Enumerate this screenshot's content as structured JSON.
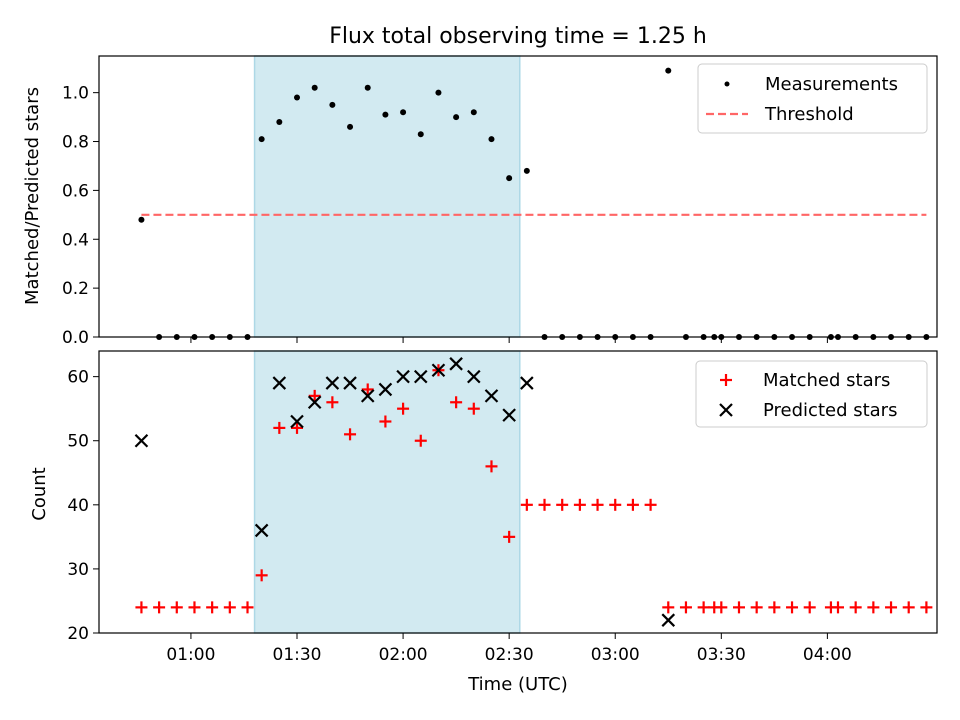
{
  "title": "Flux total observing time = 1.25 h",
  "colors": {
    "shade": "#add8e6",
    "threshold": "#ff6666",
    "matched": "#ff0000",
    "predicted": "#000000",
    "measurement": "#000000"
  },
  "chart_data": [
    {
      "type": "scatter",
      "xlabel": "",
      "ylabel": "Matched/Predicted stars",
      "ylim": [
        0,
        1.15
      ],
      "yticks": [
        0.0,
        0.2,
        0.4,
        0.6,
        0.8,
        1.0
      ],
      "ytick_labels": [
        "0.0",
        "0.2",
        "0.4",
        "0.6",
        "0.8",
        "1.0"
      ],
      "xlim_min": [
        34,
        271
      ],
      "shaded_interval_min": [
        78,
        153
      ],
      "legend_position": "top-right",
      "series": [
        {
          "name": "Measurements",
          "marker": "dot",
          "x_min": [
            46,
            51,
            56,
            61,
            66,
            71,
            76,
            80,
            85,
            90,
            95,
            100,
            105,
            110,
            115,
            120,
            125,
            130,
            135,
            140,
            145,
            150,
            155,
            160,
            165,
            170,
            175,
            180,
            185,
            190,
            195,
            200,
            205,
            208,
            210,
            215,
            220,
            225,
            230,
            235,
            241,
            243,
            248,
            253,
            258,
            263,
            268
          ],
          "y": [
            0.48,
            0.0,
            0.0,
            0.0,
            0.0,
            0.0,
            0.0,
            0.81,
            0.88,
            0.98,
            1.02,
            0.95,
            0.86,
            1.02,
            0.91,
            0.92,
            0.83,
            1.0,
            0.9,
            0.92,
            0.81,
            0.65,
            0.68,
            0.0,
            0.0,
            0.0,
            0.0,
            0.0,
            0.0,
            0.0,
            1.09,
            0.0,
            0.0,
            0.0,
            0.0,
            0.0,
            0.0,
            0.0,
            0.0,
            0.0,
            0.0,
            0.0,
            0.0,
            0.0,
            0.0,
            0.0,
            0.0
          ]
        },
        {
          "name": "Threshold",
          "style": "dashed",
          "x_min": [
            46,
            268
          ],
          "y": [
            0.5,
            0.5
          ]
        }
      ]
    },
    {
      "type": "scatter",
      "xlabel": "Time (UTC)",
      "ylabel": "Count",
      "ylim": [
        20,
        64
      ],
      "yticks": [
        20,
        30,
        40,
        50,
        60
      ],
      "ytick_labels": [
        "20",
        "30",
        "40",
        "50",
        "60"
      ],
      "xlim_min": [
        34,
        271
      ],
      "xticks_min": [
        60,
        90,
        120,
        150,
        180,
        210,
        240
      ],
      "xtick_labels": [
        "01:00",
        "01:30",
        "02:00",
        "02:30",
        "03:00",
        "03:30",
        "04:00"
      ],
      "shaded_interval_min": [
        78,
        153
      ],
      "legend_position": "top-right",
      "series": [
        {
          "name": "Matched stars",
          "marker": "plus",
          "x_min": [
            46,
            51,
            56,
            61,
            66,
            71,
            76,
            80,
            85,
            90,
            95,
            100,
            105,
            110,
            115,
            120,
            125,
            130,
            135,
            140,
            145,
            150,
            155,
            160,
            165,
            170,
            175,
            180,
            185,
            190,
            195,
            200,
            205,
            208,
            210,
            215,
            220,
            225,
            230,
            235,
            241,
            243,
            248,
            253,
            258,
            263,
            268
          ],
          "y": [
            24,
            24,
            24,
            24,
            24,
            24,
            24,
            29,
            52,
            52,
            57,
            56,
            51,
            58,
            53,
            55,
            50,
            61,
            56,
            55,
            46,
            35,
            40,
            40,
            40,
            40,
            40,
            40,
            40,
            40,
            24,
            24,
            24,
            24,
            24,
            24,
            24,
            24,
            24,
            24,
            24,
            24,
            24,
            24,
            24,
            24,
            24
          ]
        },
        {
          "name": "Predicted stars",
          "marker": "x",
          "x_min": [
            46,
            80,
            85,
            90,
            95,
            100,
            105,
            110,
            115,
            120,
            125,
            130,
            135,
            140,
            145,
            150,
            155,
            195
          ],
          "y": [
            50,
            36,
            59,
            53,
            56,
            59,
            59,
            57,
            58,
            60,
            60,
            61,
            62,
            60,
            57,
            54,
            59,
            22
          ]
        }
      ]
    }
  ]
}
